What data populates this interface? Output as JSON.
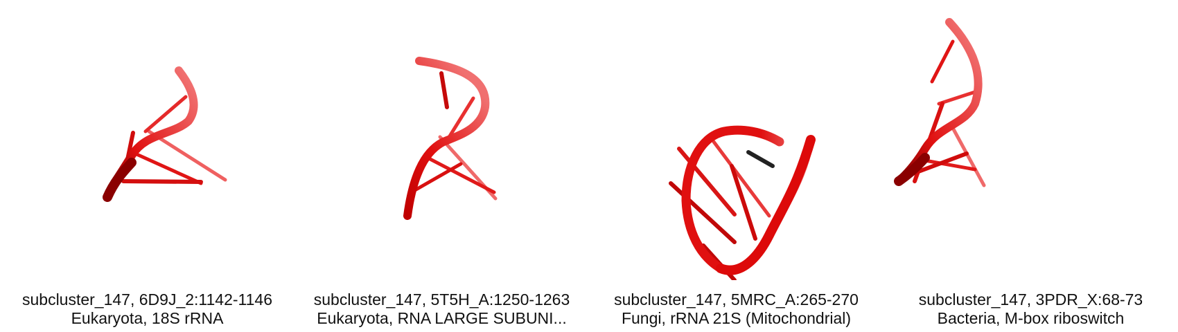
{
  "panels": [
    {
      "line1": "subcluster_147, 6D9J_2:1142-1146",
      "line2": "Eukaryota, 18S rRNA",
      "backbone_color": "#e01010"
    },
    {
      "line1": "subcluster_147, 5T5H_A:1250-1263",
      "line2": "Eukaryota, RNA LARGE SUBUNI...",
      "backbone_color": "#e01010"
    },
    {
      "line1": "subcluster_147, 5MRC_A:265-270",
      "line2": "Fungi, rRNA 21S (Mitochondrial)",
      "backbone_color": "#e01010"
    },
    {
      "line1": "subcluster_147, 3PDR_X:68-73",
      "line2": "Bacteria, M-box riboswitch",
      "backbone_color": "#e01010"
    }
  ]
}
